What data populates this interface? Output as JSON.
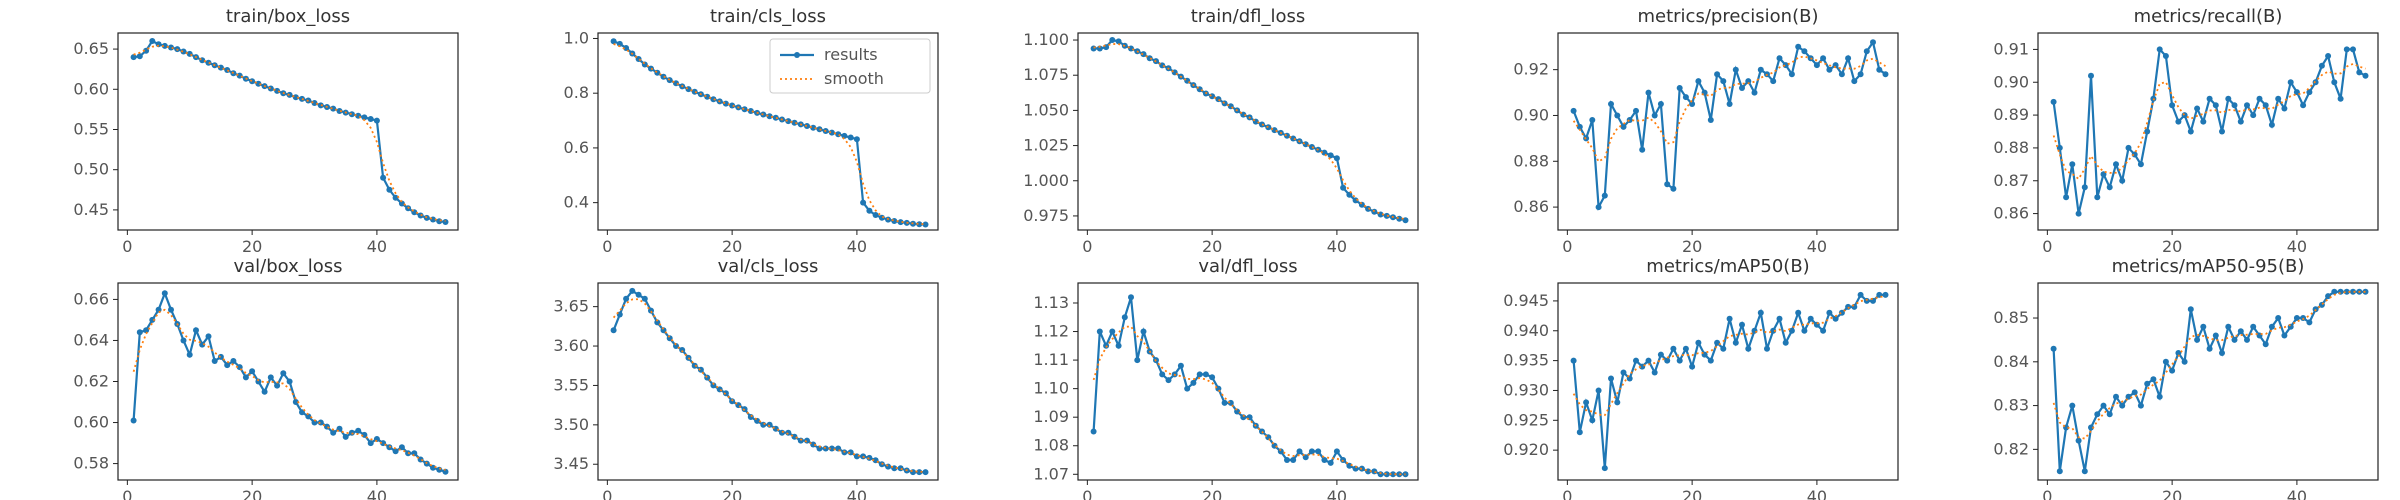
{
  "legend": {
    "results": "results",
    "smooth": "smooth"
  },
  "colors": {
    "results": "#1f77b4",
    "smooth": "#ff7f0e"
  },
  "chart_data": [
    {
      "type": "line",
      "title": "train/box_loss",
      "ylim": [
        0.425,
        0.67
      ],
      "yticks": [
        0.45,
        0.5,
        0.55,
        0.6,
        0.65
      ],
      "yfmt": 2,
      "x": [
        1,
        2,
        3,
        4,
        5,
        6,
        7,
        8,
        9,
        10,
        11,
        12,
        13,
        14,
        15,
        16,
        17,
        18,
        19,
        20,
        21,
        22,
        23,
        24,
        25,
        26,
        27,
        28,
        29,
        30,
        31,
        32,
        33,
        34,
        35,
        36,
        37,
        38,
        39,
        40,
        41,
        42,
        43,
        44,
        45,
        46,
        47,
        48,
        49,
        50,
        51
      ],
      "series": [
        {
          "name": "results",
          "values": [
            0.64,
            0.641,
            0.648,
            0.66,
            0.656,
            0.654,
            0.652,
            0.65,
            0.647,
            0.644,
            0.64,
            0.636,
            0.633,
            0.63,
            0.627,
            0.624,
            0.62,
            0.617,
            0.613,
            0.61,
            0.607,
            0.604,
            0.601,
            0.598,
            0.595,
            0.593,
            0.59,
            0.588,
            0.586,
            0.583,
            0.58,
            0.578,
            0.576,
            0.573,
            0.571,
            0.569,
            0.567,
            0.565,
            0.563,
            0.561,
            0.49,
            0.475,
            0.465,
            0.458,
            0.452,
            0.447,
            0.443,
            0.44,
            0.438,
            0.436,
            0.435
          ]
        }
      ]
    },
    {
      "type": "line",
      "title": "train/cls_loss",
      "ylim": [
        0.3,
        1.02
      ],
      "yticks": [
        0.4,
        0.6,
        0.8,
        1.0
      ],
      "yfmt": 1,
      "x": [
        1,
        2,
        3,
        4,
        5,
        6,
        7,
        8,
        9,
        10,
        11,
        12,
        13,
        14,
        15,
        16,
        17,
        18,
        19,
        20,
        21,
        22,
        23,
        24,
        25,
        26,
        27,
        28,
        29,
        30,
        31,
        32,
        33,
        34,
        35,
        36,
        37,
        38,
        39,
        40,
        41,
        42,
        43,
        44,
        45,
        46,
        47,
        48,
        49,
        50,
        51
      ],
      "series": [
        {
          "name": "results",
          "values": [
            0.99,
            0.98,
            0.965,
            0.945,
            0.925,
            0.905,
            0.89,
            0.875,
            0.86,
            0.848,
            0.836,
            0.825,
            0.815,
            0.805,
            0.796,
            0.787,
            0.778,
            0.77,
            0.762,
            0.755,
            0.748,
            0.741,
            0.735,
            0.728,
            0.722,
            0.716,
            0.71,
            0.704,
            0.698,
            0.692,
            0.686,
            0.68,
            0.674,
            0.668,
            0.662,
            0.656,
            0.65,
            0.644,
            0.638,
            0.632,
            0.4,
            0.37,
            0.355,
            0.345,
            0.338,
            0.333,
            0.329,
            0.326,
            0.323,
            0.321,
            0.32
          ]
        }
      ]
    },
    {
      "type": "line",
      "title": "train/dfl_loss",
      "ylim": [
        0.965,
        1.105
      ],
      "yticks": [
        0.975,
        1.0,
        1.025,
        1.05,
        1.075,
        1.1
      ],
      "yfmt": 3,
      "x": [
        1,
        2,
        3,
        4,
        5,
        6,
        7,
        8,
        9,
        10,
        11,
        12,
        13,
        14,
        15,
        16,
        17,
        18,
        19,
        20,
        21,
        22,
        23,
        24,
        25,
        26,
        27,
        28,
        29,
        30,
        31,
        32,
        33,
        34,
        35,
        36,
        37,
        38,
        39,
        40,
        41,
        42,
        43,
        44,
        45,
        46,
        47,
        48,
        49,
        50,
        51
      ],
      "series": [
        {
          "name": "results",
          "values": [
            1.094,
            1.094,
            1.095,
            1.1,
            1.099,
            1.096,
            1.094,
            1.092,
            1.09,
            1.087,
            1.085,
            1.082,
            1.08,
            1.077,
            1.074,
            1.071,
            1.068,
            1.065,
            1.062,
            1.06,
            1.058,
            1.055,
            1.053,
            1.05,
            1.047,
            1.045,
            1.042,
            1.04,
            1.038,
            1.036,
            1.034,
            1.032,
            1.03,
            1.028,
            1.026,
            1.024,
            1.022,
            1.02,
            1.018,
            1.016,
            0.995,
            0.99,
            0.986,
            0.983,
            0.98,
            0.978,
            0.976,
            0.975,
            0.974,
            0.973,
            0.972
          ]
        }
      ]
    },
    {
      "type": "line",
      "title": "metrics/precision(B)",
      "ylim": [
        0.85,
        0.936
      ],
      "yticks": [
        0.86,
        0.88,
        0.9,
        0.92
      ],
      "yfmt": 2,
      "x": [
        1,
        2,
        3,
        4,
        5,
        6,
        7,
        8,
        9,
        10,
        11,
        12,
        13,
        14,
        15,
        16,
        17,
        18,
        19,
        20,
        21,
        22,
        23,
        24,
        25,
        26,
        27,
        28,
        29,
        30,
        31,
        32,
        33,
        34,
        35,
        36,
        37,
        38,
        39,
        40,
        41,
        42,
        43,
        44,
        45,
        46,
        47,
        48,
        49,
        50,
        51
      ],
      "series": [
        {
          "name": "results",
          "values": [
            0.902,
            0.895,
            0.89,
            0.898,
            0.86,
            0.865,
            0.905,
            0.9,
            0.895,
            0.898,
            0.902,
            0.885,
            0.91,
            0.9,
            0.905,
            0.87,
            0.868,
            0.912,
            0.908,
            0.905,
            0.915,
            0.91,
            0.898,
            0.918,
            0.915,
            0.905,
            0.92,
            0.912,
            0.915,
            0.91,
            0.92,
            0.918,
            0.915,
            0.925,
            0.922,
            0.918,
            0.93,
            0.928,
            0.925,
            0.922,
            0.925,
            0.92,
            0.922,
            0.918,
            0.925,
            0.915,
            0.918,
            0.928,
            0.932,
            0.92,
            0.918
          ]
        }
      ]
    },
    {
      "type": "line",
      "title": "metrics/recall(B)",
      "ylim": [
        0.855,
        0.915
      ],
      "yticks": [
        0.86,
        0.87,
        0.88,
        0.89,
        0.9,
        0.91
      ],
      "yfmt": 2,
      "x": [
        1,
        2,
        3,
        4,
        5,
        6,
        7,
        8,
        9,
        10,
        11,
        12,
        13,
        14,
        15,
        16,
        17,
        18,
        19,
        20,
        21,
        22,
        23,
        24,
        25,
        26,
        27,
        28,
        29,
        30,
        31,
        32,
        33,
        34,
        35,
        36,
        37,
        38,
        39,
        40,
        41,
        42,
        43,
        44,
        45,
        46,
        47,
        48,
        49,
        50,
        51
      ],
      "series": [
        {
          "name": "results",
          "values": [
            0.894,
            0.88,
            0.865,
            0.875,
            0.86,
            0.868,
            0.902,
            0.865,
            0.872,
            0.868,
            0.875,
            0.87,
            0.88,
            0.878,
            0.875,
            0.885,
            0.895,
            0.91,
            0.908,
            0.893,
            0.888,
            0.89,
            0.885,
            0.892,
            0.888,
            0.895,
            0.893,
            0.885,
            0.895,
            0.893,
            0.888,
            0.893,
            0.89,
            0.895,
            0.893,
            0.887,
            0.895,
            0.892,
            0.9,
            0.897,
            0.893,
            0.897,
            0.9,
            0.905,
            0.908,
            0.9,
            0.895,
            0.91,
            0.91,
            0.903,
            0.902
          ]
        }
      ]
    },
    {
      "type": "line",
      "title": "val/box_loss",
      "ylim": [
        0.572,
        0.668
      ],
      "yticks": [
        0.58,
        0.6,
        0.62,
        0.64,
        0.66
      ],
      "yfmt": 2,
      "x": [
        1,
        2,
        3,
        4,
        5,
        6,
        7,
        8,
        9,
        10,
        11,
        12,
        13,
        14,
        15,
        16,
        17,
        18,
        19,
        20,
        21,
        22,
        23,
        24,
        25,
        26,
        27,
        28,
        29,
        30,
        31,
        32,
        33,
        34,
        35,
        36,
        37,
        38,
        39,
        40,
        41,
        42,
        43,
        44,
        45,
        46,
        47,
        48,
        49,
        50,
        51
      ],
      "series": [
        {
          "name": "results",
          "values": [
            0.601,
            0.644,
            0.645,
            0.65,
            0.655,
            0.663,
            0.655,
            0.648,
            0.64,
            0.633,
            0.645,
            0.638,
            0.642,
            0.63,
            0.632,
            0.628,
            0.63,
            0.627,
            0.622,
            0.625,
            0.62,
            0.615,
            0.622,
            0.618,
            0.624,
            0.62,
            0.61,
            0.605,
            0.603,
            0.6,
            0.6,
            0.598,
            0.595,
            0.597,
            0.593,
            0.595,
            0.596,
            0.594,
            0.59,
            0.592,
            0.59,
            0.588,
            0.586,
            0.588,
            0.585,
            0.585,
            0.582,
            0.58,
            0.578,
            0.577,
            0.576
          ]
        }
      ]
    },
    {
      "type": "line",
      "title": "val/cls_loss",
      "ylim": [
        3.43,
        3.68
      ],
      "yticks": [
        3.45,
        3.5,
        3.55,
        3.6,
        3.65
      ],
      "yfmt": 2,
      "x": [
        1,
        2,
        3,
        4,
        5,
        6,
        7,
        8,
        9,
        10,
        11,
        12,
        13,
        14,
        15,
        16,
        17,
        18,
        19,
        20,
        21,
        22,
        23,
        24,
        25,
        26,
        27,
        28,
        29,
        30,
        31,
        32,
        33,
        34,
        35,
        36,
        37,
        38,
        39,
        40,
        41,
        42,
        43,
        44,
        45,
        46,
        47,
        48,
        49,
        50,
        51
      ],
      "series": [
        {
          "name": "results",
          "values": [
            3.62,
            3.64,
            3.66,
            3.67,
            3.665,
            3.66,
            3.645,
            3.63,
            3.62,
            3.61,
            3.6,
            3.595,
            3.585,
            3.575,
            3.57,
            3.56,
            3.55,
            3.545,
            3.54,
            3.53,
            3.525,
            3.52,
            3.51,
            3.505,
            3.5,
            3.5,
            3.495,
            3.49,
            3.49,
            3.485,
            3.48,
            3.48,
            3.475,
            3.47,
            3.47,
            3.47,
            3.47,
            3.465,
            3.465,
            3.46,
            3.46,
            3.458,
            3.455,
            3.45,
            3.447,
            3.445,
            3.445,
            3.442,
            3.44,
            3.44,
            3.44
          ]
        }
      ]
    },
    {
      "type": "line",
      "title": "val/dfl_loss",
      "ylim": [
        1.068,
        1.137
      ],
      "yticks": [
        1.07,
        1.08,
        1.09,
        1.1,
        1.11,
        1.12,
        1.13
      ],
      "yfmt": 2,
      "x": [
        1,
        2,
        3,
        4,
        5,
        6,
        7,
        8,
        9,
        10,
        11,
        12,
        13,
        14,
        15,
        16,
        17,
        18,
        19,
        20,
        21,
        22,
        23,
        24,
        25,
        26,
        27,
        28,
        29,
        30,
        31,
        32,
        33,
        34,
        35,
        36,
        37,
        38,
        39,
        40,
        41,
        42,
        43,
        44,
        45,
        46,
        47,
        48,
        49,
        50,
        51
      ],
      "series": [
        {
          "name": "results",
          "values": [
            1.085,
            1.12,
            1.115,
            1.12,
            1.115,
            1.125,
            1.132,
            1.11,
            1.12,
            1.113,
            1.11,
            1.105,
            1.103,
            1.105,
            1.108,
            1.1,
            1.102,
            1.105,
            1.105,
            1.104,
            1.1,
            1.095,
            1.095,
            1.092,
            1.09,
            1.09,
            1.087,
            1.085,
            1.083,
            1.08,
            1.078,
            1.075,
            1.075,
            1.078,
            1.076,
            1.078,
            1.078,
            1.075,
            1.074,
            1.078,
            1.075,
            1.073,
            1.072,
            1.072,
            1.071,
            1.071,
            1.07,
            1.07,
            1.07,
            1.07,
            1.07
          ]
        }
      ]
    },
    {
      "type": "line",
      "title": "metrics/mAP50(B)",
      "ylim": [
        0.915,
        0.948
      ],
      "yticks": [
        0.92,
        0.925,
        0.93,
        0.935,
        0.94,
        0.945
      ],
      "yfmt": 3,
      "x": [
        1,
        2,
        3,
        4,
        5,
        6,
        7,
        8,
        9,
        10,
        11,
        12,
        13,
        14,
        15,
        16,
        17,
        18,
        19,
        20,
        21,
        22,
        23,
        24,
        25,
        26,
        27,
        28,
        29,
        30,
        31,
        32,
        33,
        34,
        35,
        36,
        37,
        38,
        39,
        40,
        41,
        42,
        43,
        44,
        45,
        46,
        47,
        48,
        49,
        50,
        51
      ],
      "series": [
        {
          "name": "results",
          "values": [
            0.935,
            0.923,
            0.928,
            0.925,
            0.93,
            0.917,
            0.932,
            0.928,
            0.933,
            0.932,
            0.935,
            0.934,
            0.935,
            0.933,
            0.936,
            0.935,
            0.937,
            0.935,
            0.937,
            0.934,
            0.938,
            0.936,
            0.935,
            0.938,
            0.937,
            0.942,
            0.938,
            0.941,
            0.937,
            0.94,
            0.943,
            0.937,
            0.94,
            0.942,
            0.938,
            0.94,
            0.943,
            0.94,
            0.942,
            0.941,
            0.94,
            0.943,
            0.942,
            0.943,
            0.944,
            0.944,
            0.946,
            0.945,
            0.945,
            0.946,
            0.946
          ]
        }
      ]
    },
    {
      "type": "line",
      "title": "metrics/mAP50-95(B)",
      "ylim": [
        0.813,
        0.858
      ],
      "yticks": [
        0.82,
        0.83,
        0.84,
        0.85
      ],
      "yfmt": 2,
      "x": [
        1,
        2,
        3,
        4,
        5,
        6,
        7,
        8,
        9,
        10,
        11,
        12,
        13,
        14,
        15,
        16,
        17,
        18,
        19,
        20,
        21,
        22,
        23,
        24,
        25,
        26,
        27,
        28,
        29,
        30,
        31,
        32,
        33,
        34,
        35,
        36,
        37,
        38,
        39,
        40,
        41,
        42,
        43,
        44,
        45,
        46,
        47,
        48,
        49,
        50,
        51
      ],
      "series": [
        {
          "name": "results",
          "values": [
            0.843,
            0.815,
            0.825,
            0.83,
            0.822,
            0.815,
            0.825,
            0.828,
            0.83,
            0.828,
            0.832,
            0.83,
            0.832,
            0.833,
            0.83,
            0.835,
            0.836,
            0.832,
            0.84,
            0.838,
            0.842,
            0.84,
            0.852,
            0.845,
            0.848,
            0.843,
            0.846,
            0.842,
            0.848,
            0.845,
            0.847,
            0.845,
            0.848,
            0.846,
            0.844,
            0.848,
            0.85,
            0.846,
            0.848,
            0.85,
            0.85,
            0.849,
            0.852,
            0.853,
            0.855,
            0.856,
            0.856,
            0.856,
            0.856,
            0.856,
            0.856
          ]
        }
      ]
    }
  ]
}
